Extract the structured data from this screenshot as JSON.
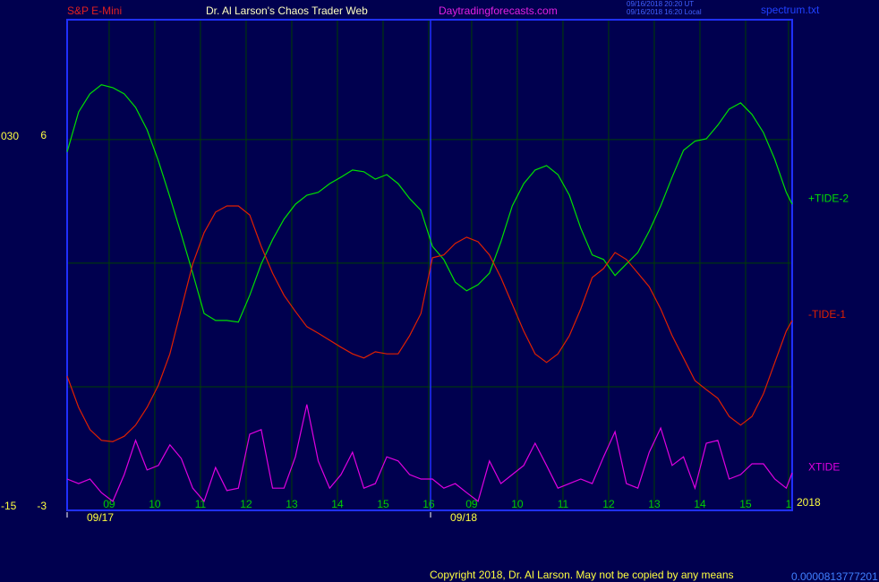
{
  "header": {
    "instrument": "S&P E-Mini",
    "site_title": "Dr. Al Larson's Chaos Trader Web",
    "site_url": "Daytradingforecasts.com",
    "time_ut": "09/16/2018 20:20 UT",
    "time_local": "09/16/2018 16:20 Local",
    "file": "spectrum.txt"
  },
  "footer": {
    "copyright": "Copyright 2018, Dr. Al Larson. May not be copied by any means",
    "code": "0.0000813777201"
  },
  "chart_data": {
    "type": "line",
    "year_label": "2018",
    "xlim": [
      0,
      15.88
    ],
    "xticks": [
      {
        "value": 0.92,
        "label": "09"
      },
      {
        "value": 1.92,
        "label": "10"
      },
      {
        "value": 2.92,
        "label": "11"
      },
      {
        "value": 3.92,
        "label": "12"
      },
      {
        "value": 4.92,
        "label": "13"
      },
      {
        "value": 5.92,
        "label": "14"
      },
      {
        "value": 6.92,
        "label": "15"
      },
      {
        "value": 7.92,
        "label": "16"
      },
      {
        "value": 8.86,
        "label": "09"
      },
      {
        "value": 9.86,
        "label": "10"
      },
      {
        "value": 10.86,
        "label": "11"
      },
      {
        "value": 11.86,
        "label": "12"
      },
      {
        "value": 12.86,
        "label": "13"
      },
      {
        "value": 13.86,
        "label": "14"
      },
      {
        "value": 14.86,
        "label": "15"
      },
      {
        "value": 15.8,
        "label": "1"
      }
    ],
    "date_markers": [
      {
        "value": 0,
        "label": "09/17"
      },
      {
        "value": 7.96,
        "label": "09/18"
      }
    ],
    "ylim": [
      -3,
      8.91
    ],
    "yticks": [
      -3,
      6
    ],
    "ygrid": [
      -3,
      0,
      3,
      6
    ],
    "y2lim": [
      -15,
      44.7
    ],
    "y2ticks": [
      -15,
      {
        "value": 30,
        "label": "030"
      }
    ],
    "grid": true,
    "x": [
      0,
      0.25,
      0.5,
      0.75,
      1,
      1.25,
      1.5,
      1.75,
      2,
      2.25,
      2.5,
      2.75,
      3,
      3.25,
      3.5,
      3.75,
      4,
      4.25,
      4.5,
      4.75,
      5,
      5.25,
      5.5,
      5.75,
      6,
      6.25,
      6.5,
      6.75,
      7,
      7.25,
      7.5,
      7.75,
      8,
      8.25,
      8.5,
      8.75,
      9,
      9.25,
      9.5,
      9.75,
      10,
      10.25,
      10.5,
      10.75,
      11,
      11.25,
      11.5,
      11.75,
      12,
      12.25,
      12.5,
      12.75,
      13,
      13.25,
      13.5,
      13.75,
      14,
      14.25,
      14.5,
      14.75,
      15,
      15.25,
      15.5,
      15.75,
      15.88
    ],
    "series": [
      {
        "name": "+TIDE-2",
        "color": "#00e000",
        "values": [
          5.7,
          6.67,
          7.11,
          7.33,
          7.26,
          7.11,
          6.78,
          6.24,
          5.48,
          4.61,
          3.7,
          2.76,
          1.78,
          1.61,
          1.61,
          1.57,
          2.22,
          2.98,
          3.57,
          4.07,
          4.43,
          4.65,
          4.72,
          4.93,
          5.09,
          5.26,
          5.22,
          5.04,
          5.15,
          4.93,
          4.57,
          4.28,
          3.41,
          3.09,
          2.54,
          2.33,
          2.48,
          2.76,
          3.52,
          4.39,
          4.93,
          5.26,
          5.37,
          5.15,
          4.65,
          3.85,
          3.2,
          3.09,
          2.7,
          2.98,
          3.26,
          3.78,
          4.39,
          5.09,
          5.74,
          5.96,
          6.02,
          6.35,
          6.74,
          6.89,
          6.61,
          6.17,
          5.52,
          4.72,
          4.43
        ]
      },
      {
        "name": "-TIDE-1",
        "color": "#e02000",
        "values": [
          0.26,
          -0.5,
          -1.04,
          -1.3,
          -1.33,
          -1.2,
          -0.93,
          -0.5,
          0.04,
          0.8,
          1.89,
          2.98,
          3.74,
          4.24,
          4.39,
          4.39,
          4.17,
          3.41,
          2.76,
          2.22,
          1.83,
          1.46,
          1.3,
          1.13,
          0.96,
          0.8,
          0.7,
          0.85,
          0.8,
          0.8,
          1.24,
          1.78,
          3.13,
          3.2,
          3.48,
          3.63,
          3.52,
          3.2,
          2.65,
          2.0,
          1.35,
          0.8,
          0.59,
          0.8,
          1.24,
          1.89,
          2.65,
          2.87,
          3.26,
          3.09,
          2.76,
          2.43,
          1.89,
          1.24,
          0.7,
          0.15,
          -0.07,
          -0.28,
          -0.72,
          -0.93,
          -0.72,
          -0.17,
          0.59,
          1.35,
          1.61
        ]
      },
      {
        "name": "XTIDE",
        "color": "#e000e0",
        "values": [
          -2.24,
          -2.35,
          -2.24,
          -2.57,
          -2.78,
          -2.13,
          -1.3,
          -2.02,
          -1.91,
          -1.41,
          -1.74,
          -2.46,
          -2.78,
          -1.96,
          -2.52,
          -2.46,
          -1.15,
          -1.04,
          -2.46,
          -2.46,
          -1.7,
          -0.43,
          -1.8,
          -2.46,
          -2.13,
          -1.59,
          -2.46,
          -2.35,
          -1.7,
          -1.8,
          -2.13,
          -2.24,
          -2.24,
          -2.46,
          -2.35,
          -2.57,
          -2.78,
          -1.8,
          -2.35,
          -2.13,
          -1.91,
          -1.37,
          -1.91,
          -2.46,
          -2.35,
          -2.24,
          -2.35,
          -1.7,
          -1.09,
          -2.35,
          -2.46,
          -1.59,
          -1.0,
          -1.91,
          -1.7,
          -2.46,
          -1.37,
          -1.3,
          -2.24,
          -2.13,
          -1.87,
          -1.87,
          -2.24,
          -2.46,
          -2.09
        ]
      }
    ]
  }
}
